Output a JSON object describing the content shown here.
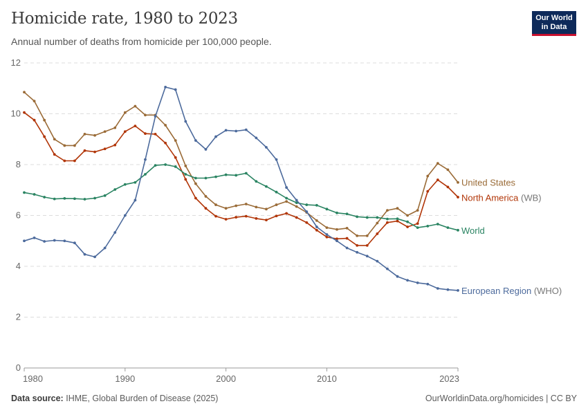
{
  "header": {
    "title": "Homicide rate, 1980 to 2023",
    "subtitle": "Annual number of deaths from homicide per 100,000 people."
  },
  "logo": {
    "line1": "Our World",
    "line2": "in Data"
  },
  "footer": {
    "source_label": "Data source:",
    "source_text": "IHME, Global Burden of Disease (2025)",
    "right_text": "OurWorldinData.org/homicides | CC BY"
  },
  "chart_data": {
    "type": "line",
    "title": "Homicide rate, 1980 to 2023",
    "ylabel": "Annual number of deaths from homicide per 100,000 people",
    "xlim": [
      1980,
      2023
    ],
    "ylim": [
      0,
      12
    ],
    "x_ticks": [
      "1980",
      "1990",
      "2000",
      "2010",
      "2023"
    ],
    "y_ticks": [
      "0",
      "2",
      "4",
      "6",
      "8",
      "10",
      "12"
    ],
    "grid": true,
    "x": [
      1980,
      1981,
      1982,
      1983,
      1984,
      1985,
      1986,
      1987,
      1988,
      1989,
      1990,
      1991,
      1992,
      1993,
      1994,
      1995,
      1996,
      1997,
      1998,
      1999,
      2000,
      2001,
      2002,
      2003,
      2004,
      2005,
      2006,
      2007,
      2008,
      2009,
      2010,
      2011,
      2012,
      2013,
      2014,
      2015,
      2016,
      2017,
      2018,
      2019,
      2020,
      2021,
      2022,
      2023
    ],
    "series": [
      {
        "name": "United States",
        "label_main": "United States",
        "label_suffix": "",
        "color": "#9a6b37",
        "values": [
          10.85,
          10.5,
          9.75,
          9.0,
          8.75,
          8.75,
          9.2,
          9.15,
          9.3,
          9.45,
          10.05,
          10.3,
          9.95,
          9.95,
          9.55,
          8.95,
          7.95,
          7.25,
          6.75,
          6.42,
          6.28,
          6.38,
          6.45,
          6.33,
          6.25,
          6.42,
          6.55,
          6.35,
          6.12,
          5.8,
          5.52,
          5.45,
          5.5,
          5.2,
          5.2,
          5.7,
          6.2,
          6.28,
          6.0,
          6.2,
          7.55,
          8.05,
          7.8,
          7.3
        ]
      },
      {
        "name": "North America (WB)",
        "label_main": "North America",
        "label_suffix": "(WB)",
        "color": "#b13507",
        "values": [
          10.05,
          9.75,
          9.1,
          8.4,
          8.15,
          8.15,
          8.55,
          8.5,
          8.62,
          8.77,
          9.3,
          9.52,
          9.22,
          9.2,
          8.85,
          8.28,
          7.42,
          6.68,
          6.28,
          5.97,
          5.85,
          5.93,
          5.97,
          5.88,
          5.82,
          5.98,
          6.08,
          5.92,
          5.72,
          5.42,
          5.15,
          5.08,
          5.1,
          4.82,
          4.82,
          5.28,
          5.72,
          5.78,
          5.55,
          5.68,
          6.95,
          7.4,
          7.12,
          6.72
        ]
      },
      {
        "name": "World",
        "label_main": "World",
        "label_suffix": "",
        "color": "#2a8462",
        "values": [
          6.9,
          6.83,
          6.72,
          6.65,
          6.67,
          6.66,
          6.64,
          6.68,
          6.78,
          7.02,
          7.22,
          7.3,
          7.62,
          7.97,
          8.0,
          7.92,
          7.62,
          7.47,
          7.47,
          7.52,
          7.6,
          7.58,
          7.66,
          7.34,
          7.14,
          6.92,
          6.68,
          6.5,
          6.42,
          6.4,
          6.25,
          6.1,
          6.06,
          5.95,
          5.92,
          5.92,
          5.86,
          5.87,
          5.75,
          5.52,
          5.58,
          5.66,
          5.52,
          5.42
        ]
      },
      {
        "name": "European Region (WHO)",
        "label_main": "European Region",
        "label_suffix": "(WHO)",
        "color": "#4c6a9c",
        "values": [
          5.0,
          5.12,
          4.98,
          5.02,
          5.0,
          4.92,
          4.47,
          4.37,
          4.72,
          5.33,
          6.0,
          6.6,
          8.2,
          9.9,
          11.05,
          10.95,
          9.7,
          8.95,
          8.6,
          9.1,
          9.35,
          9.32,
          9.37,
          9.05,
          8.68,
          8.2,
          7.1,
          6.6,
          6.15,
          5.55,
          5.25,
          5.0,
          4.72,
          4.55,
          4.4,
          4.2,
          3.9,
          3.6,
          3.45,
          3.35,
          3.3,
          3.13,
          3.08,
          3.05
        ]
      }
    ]
  }
}
